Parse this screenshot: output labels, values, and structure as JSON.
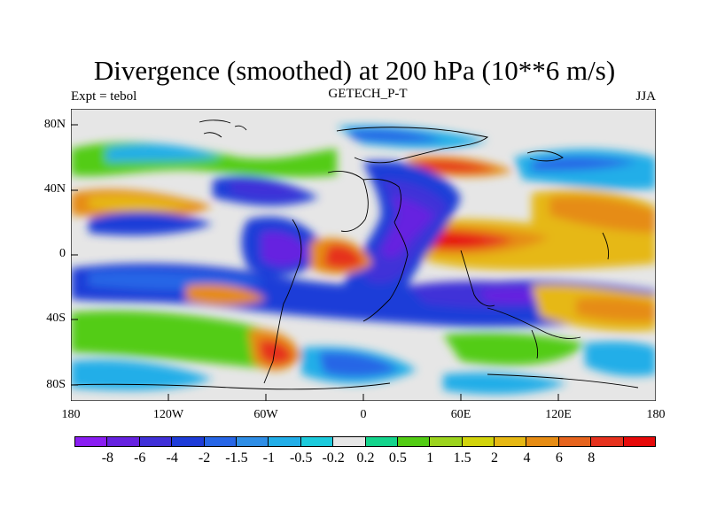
{
  "title": "Divergence (smoothed) at 200 hPa (10**6 m/s)",
  "subtitle_left": "Expt = tebol",
  "subtitle_center": "GETECH_P-T",
  "subtitle_right": "JJA",
  "y_axis_labels": [
    "80N",
    "40N",
    "0",
    "40S",
    "80S"
  ],
  "x_axis_labels": [
    "180",
    "120W",
    "60W",
    "0",
    "60E",
    "120E",
    "180"
  ],
  "legend": {
    "colors": [
      "#8a1ef2",
      "#6622e0",
      "#4030d8",
      "#1e3cd8",
      "#2766e6",
      "#2f8ee6",
      "#22aee8",
      "#1ccadc",
      "#e6e6e6",
      "#14d48c",
      "#52cc14",
      "#9cd41e",
      "#d2d40c",
      "#e6b814",
      "#e68c14",
      "#e6641e",
      "#e6321e",
      "#e60a0a"
    ],
    "labels": [
      "-8",
      "-6",
      "-4",
      "-2",
      "-1.5",
      "-1",
      "-0.5",
      "-0.2",
      "0.2",
      "0.5",
      "1",
      "1.5",
      "2",
      "4",
      "6",
      "8"
    ]
  }
}
